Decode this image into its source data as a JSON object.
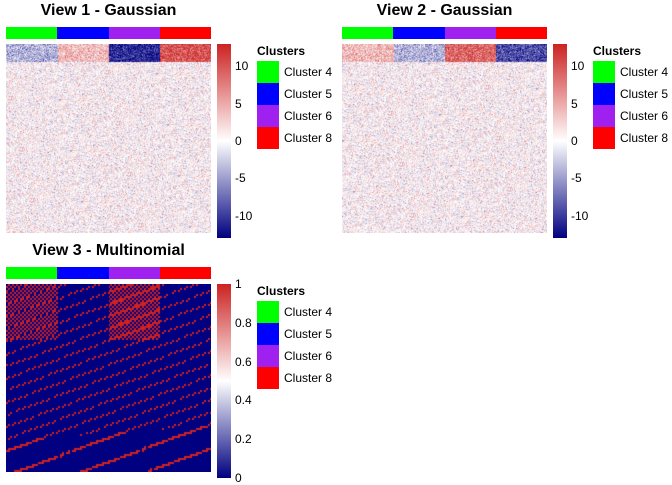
{
  "cluster_colors": {
    "Cluster 4": "#00FF00",
    "Cluster 5": "#0000FF",
    "Cluster 6": "#A020F0",
    "Cluster 8": "#FF0000"
  },
  "legend": {
    "title": "Clusters",
    "items": [
      "Cluster 4",
      "Cluster 5",
      "Cluster 6",
      "Cluster 8"
    ]
  },
  "chart_data": [
    {
      "type": "heatmap",
      "title": "View 1 - Gaussian",
      "clusters": [
        "Cluster 4",
        "Cluster 5",
        "Cluster 6",
        "Cluster 8"
      ],
      "signal_row_means": [
        -4,
        4,
        -11,
        10
      ],
      "background": "noise around 0",
      "scale": {
        "min": -13,
        "max": 13,
        "ticks": [
          10,
          5,
          0,
          -5,
          -10
        ],
        "low": "#000080",
        "mid": "#FFFFFF",
        "high": "#CC2222"
      }
    },
    {
      "type": "heatmap",
      "title": "View 2 - Gaussian",
      "clusters": [
        "Cluster 4",
        "Cluster 5",
        "Cluster 6",
        "Cluster 8"
      ],
      "signal_row_means": [
        4,
        -4,
        9,
        -9
      ],
      "background": "noise around 0",
      "scale": {
        "min": -13,
        "max": 13,
        "ticks": [
          10,
          5,
          0,
          -5,
          -10
        ],
        "low": "#000080",
        "mid": "#FFFFFF",
        "high": "#CC2222"
      }
    },
    {
      "type": "heatmap",
      "title": "View 3 - Multinomial",
      "clusters": [
        "Cluster 4",
        "Cluster 5",
        "Cluster 6",
        "Cluster 8"
      ],
      "signal_row_density": [
        0.5,
        0.1,
        0.6,
        0.1
      ],
      "background_density": 0.1,
      "scale": {
        "min": 0,
        "max": 1,
        "ticks": [
          1,
          0.8,
          0.6,
          0.4,
          0.2,
          0
        ],
        "low": "#000080",
        "mid": "#FFFFFF",
        "high": "#CC2222"
      }
    }
  ]
}
